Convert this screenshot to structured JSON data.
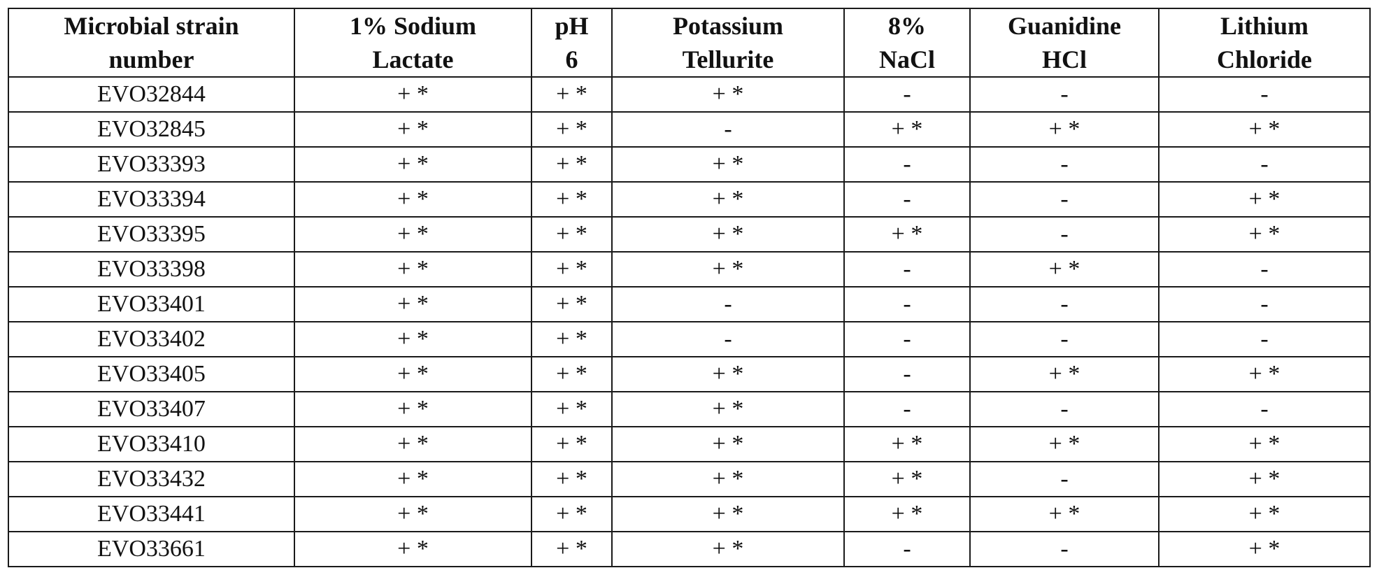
{
  "table": {
    "headers": [
      [
        "Microbial strain",
        "number"
      ],
      [
        "1% Sodium",
        "Lactate"
      ],
      [
        "pH",
        "6"
      ],
      [
        "Potassium",
        "Tellurite"
      ],
      [
        "8%",
        "NaCl"
      ],
      [
        "Guanidine",
        "HCl"
      ],
      [
        "Lithium",
        "Chloride"
      ]
    ],
    "rows": [
      [
        "EVO32844",
        "+ *",
        "+ *",
        "+ *",
        "-",
        "-",
        "-"
      ],
      [
        "EVO32845",
        "+ *",
        "+ *",
        "-",
        "+ *",
        "+ *",
        "+ *"
      ],
      [
        "EVO33393",
        "+ *",
        "+ *",
        "+ *",
        "-",
        "-",
        "-"
      ],
      [
        "EVO33394",
        "+ *",
        "+ *",
        "+ *",
        "-",
        "-",
        "+ *"
      ],
      [
        "EVO33395",
        "+ *",
        "+ *",
        "+ *",
        "+ *",
        "-",
        "+ *"
      ],
      [
        "EVO33398",
        "+ *",
        "+ *",
        "+ *",
        "-",
        "+ *",
        "-"
      ],
      [
        "EVO33401",
        "+ *",
        "+ *",
        "-",
        "-",
        "-",
        "-"
      ],
      [
        "EVO33402",
        "+ *",
        "+ *",
        "-",
        "-",
        "-",
        "-"
      ],
      [
        "EVO33405",
        "+ *",
        "+ *",
        "+ *",
        "-",
        "+ *",
        "+ *"
      ],
      [
        "EVO33407",
        "+ *",
        "+ *",
        "+ *",
        "-",
        "-",
        "-"
      ],
      [
        "EVO33410",
        "+ *",
        "+ *",
        "+ *",
        "+ *",
        "+ *",
        "+ *"
      ],
      [
        "EVO33432",
        "+ *",
        "+ *",
        "+ *",
        "+ *",
        "-",
        "+ *"
      ],
      [
        "EVO33441",
        "+ *",
        "+ *",
        "+ *",
        "+ *",
        "+ *",
        "+ *"
      ],
      [
        "EVO33661",
        "+ *",
        "+ *",
        "+ *",
        "-",
        "-",
        "+ *"
      ]
    ]
  }
}
